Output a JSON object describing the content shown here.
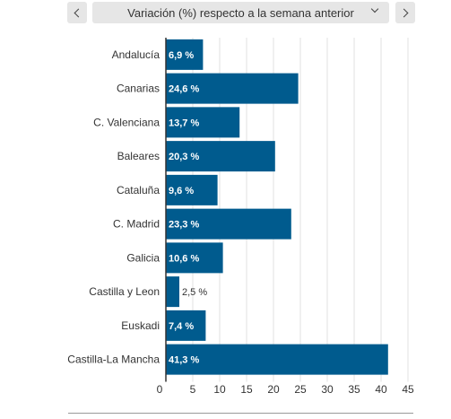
{
  "toolbar": {
    "prev_icon": "chevron-left-icon",
    "next_icon": "chevron-right-icon",
    "dropdown_icon": "chevron-down-icon",
    "selected_metric": "Variación (%) respecto a la semana anterior"
  },
  "colors": {
    "bar": "#005b8e",
    "grid": "#e0e0e0",
    "axis": "#333333"
  },
  "chart_data": {
    "type": "bar",
    "orientation": "horizontal",
    "categories": [
      "Andalucía",
      "Canarias",
      "C. Valenciana",
      "Baleares",
      "Cataluña",
      "C. Madrid",
      "Galicia",
      "Castilla y Leon",
      "Euskadi",
      "Castilla-La Mancha"
    ],
    "values": [
      6.9,
      24.6,
      13.7,
      20.3,
      9.6,
      23.3,
      10.6,
      2.5,
      7.4,
      41.3
    ],
    "value_labels": [
      "6,9 %",
      "24,6 %",
      "13,7 %",
      "20,3 %",
      "9,6 %",
      "23,3 %",
      "10,6 %",
      "2,5 %",
      "7,4 %",
      "41,3 %"
    ],
    "xticks": [
      "0",
      "5",
      "10",
      "15",
      "20",
      "25",
      "30",
      "35",
      "40",
      "45"
    ],
    "xlim": [
      0,
      45
    ],
    "grid": true,
    "legend": "none"
  }
}
